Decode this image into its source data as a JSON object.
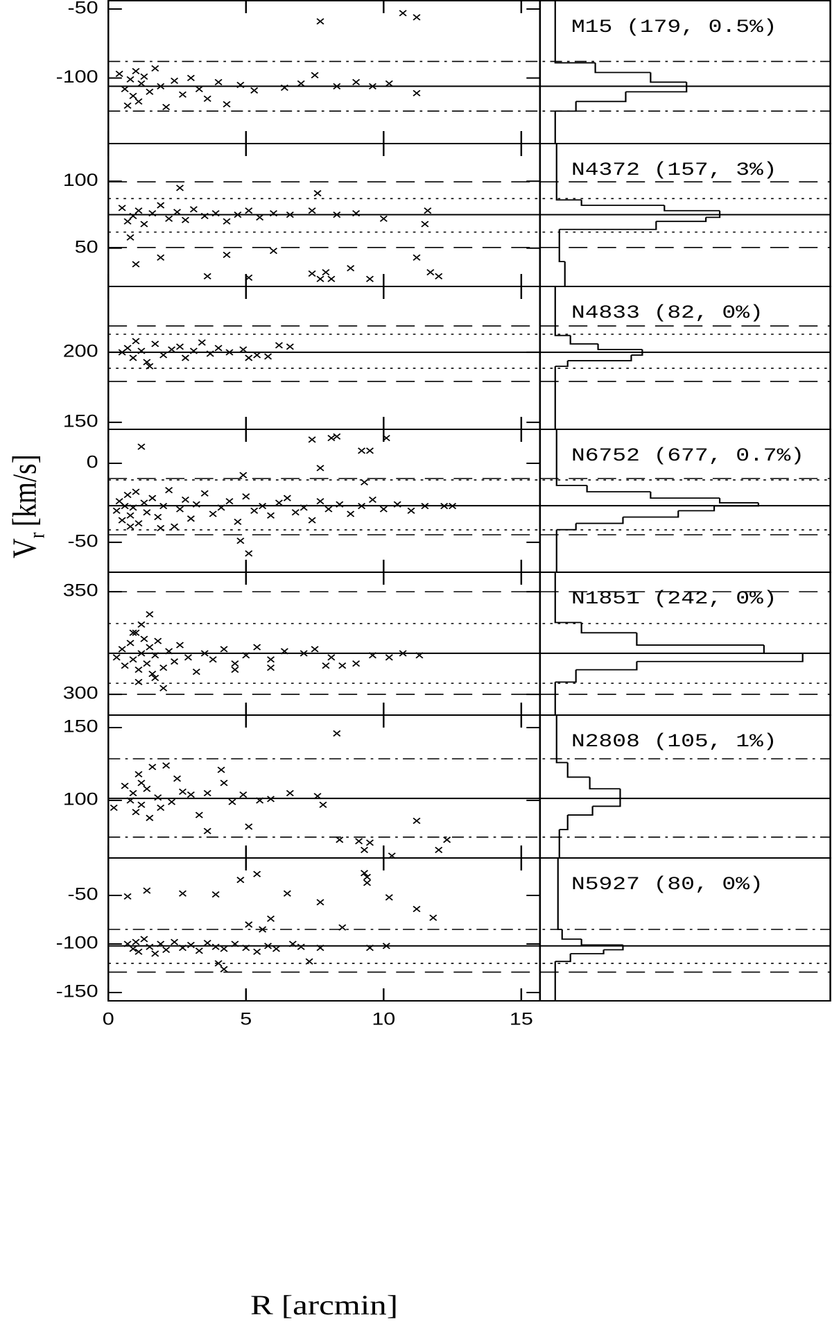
{
  "chart_data": [
    {
      "type": "scatter",
      "title": "M15 (179, 0.5%)",
      "ylim": [
        -147.5,
        -44
      ],
      "yticks": [
        -50,
        -100
      ],
      "lines": [
        {
          "value": -88,
          "style": "dash-dot"
        },
        {
          "value": -106,
          "style": "solid"
        },
        {
          "value": -124,
          "style": "dash-dot"
        }
      ],
      "x": [
        0.4,
        0.6,
        0.7,
        0.8,
        0.9,
        1.0,
        1.1,
        1.2,
        1.3,
        1.5,
        1.7,
        1.9,
        2.1,
        2.4,
        2.7,
        3.0,
        3.3,
        3.6,
        4.0,
        4.3,
        4.8,
        5.3,
        6.4,
        7.0,
        7.5,
        8.3,
        9.0,
        9.6,
        10.2,
        11.2,
        7.7,
        10.7,
        11.2
      ],
      "values": [
        -97,
        -108,
        -120,
        -101,
        -113,
        -95,
        -117,
        -104,
        -99,
        -110,
        -93,
        -106,
        -121,
        -102,
        -112,
        -100,
        -108,
        -115,
        -103,
        -119,
        -105,
        -109,
        -107,
        -104,
        -98,
        -106,
        -103,
        -106,
        -104,
        -111,
        -59,
        -53,
        -56
      ],
      "hist_xlim": [
        -5,
        100
      ],
      "hist": {
        "bins": [
          -147.5,
          -124,
          -117,
          -110,
          -103,
          -96,
          -89,
          -44
        ],
        "counts": [
          0.5,
          8,
          26,
          48,
          35,
          15,
          0.5
        ]
      }
    },
    {
      "type": "scatter",
      "title": "N4372 (157, 3%)",
      "ylim": [
        21.4,
        128.1
      ],
      "yticks": [
        100,
        50
      ],
      "lines": [
        {
          "value": 99.5,
          "style": "dashed"
        },
        {
          "value": 87,
          "style": "dotted"
        },
        {
          "value": 75,
          "style": "solid"
        },
        {
          "value": 62,
          "style": "dotted"
        },
        {
          "value": 50.5,
          "style": "dashed"
        }
      ],
      "x": [
        0.5,
        0.7,
        0.9,
        1.1,
        1.3,
        1.6,
        1.9,
        2.2,
        2.5,
        2.8,
        3.1,
        3.5,
        3.9,
        4.3,
        4.7,
        5.1,
        5.5,
        6.0,
        6.6,
        7.4,
        8.3,
        9.0,
        10.0,
        11.6,
        11.5,
        0.8,
        1.0,
        1.9,
        2.6,
        3.6,
        4.3,
        5.1,
        6.0,
        7.6,
        7.4,
        7.9,
        8.1,
        8.8,
        9.5,
        11.2,
        11.7,
        12.0,
        7.7
      ],
      "values": [
        80,
        70,
        74,
        78,
        68,
        76,
        82,
        72,
        77,
        71,
        79,
        74,
        76,
        70,
        75,
        78,
        73,
        76,
        75,
        78,
        75,
        76,
        72,
        78,
        68,
        58,
        38,
        43,
        95,
        29,
        45,
        28,
        48,
        91,
        31,
        32,
        27,
        35,
        27,
        43,
        32,
        29,
        27
      ],
      "hist_xlim": [
        -5,
        100
      ],
      "hist": {
        "bins": [
          21.4,
          40,
          64,
          70,
          73,
          78,
          82,
          86,
          128.1
        ],
        "counts": [
          4,
          2,
          37,
          55,
          60,
          40,
          10,
          1
        ]
      }
    },
    {
      "type": "scatter",
      "title": "N4833 (82, 0%)",
      "ylim": [
        145,
        247
      ],
      "yticks": [
        200,
        150
      ],
      "lines": [
        {
          "value": 218.8,
          "style": "dashed"
        },
        {
          "value": 212.9,
          "style": "dotted"
        },
        {
          "value": 200,
          "style": "solid"
        },
        {
          "value": 188.6,
          "style": "dotted"
        },
        {
          "value": 179.2,
          "style": "dashed"
        }
      ],
      "x": [
        0.5,
        0.7,
        0.9,
        1.0,
        1.2,
        1.4,
        1.5,
        1.7,
        2.0,
        2.3,
        2.6,
        2.8,
        3.1,
        3.4,
        3.7,
        4.0,
        4.4,
        4.9,
        5.1,
        5.4,
        5.8,
        6.2,
        6.6
      ],
      "values": [
        200,
        203,
        196,
        208,
        201,
        193,
        190,
        206,
        198,
        202,
        204,
        196,
        201,
        207,
        199,
        203,
        200,
        202,
        196,
        198,
        197,
        205,
        204
      ],
      "hist_xlim": [
        -5,
        100
      ],
      "hist": {
        "bins": [
          145,
          190,
          194,
          198,
          202,
          206,
          212,
          247
        ],
        "counts": [
          0.5,
          5,
          28,
          32,
          16,
          6,
          0.5
        ]
      }
    },
    {
      "type": "scatter",
      "title": "N6752 (677, 0.7%)",
      "ylim": [
        -68.9,
        21.5
      ],
      "yticks": [
        0,
        -50
      ],
      "ylabel": "V",
      "ylabel_sub": "r",
      "ylabel_unit": "[km/s]",
      "lines": [
        {
          "value": -9.6,
          "style": "dashed"
        },
        {
          "value": -10.5,
          "style": "dotted"
        },
        {
          "value": -26.8,
          "style": "solid"
        },
        {
          "value": -42.1,
          "style": "dotted"
        },
        {
          "value": -45.2,
          "style": "dashed"
        }
      ],
      "x": [
        0.3,
        0.4,
        0.5,
        0.6,
        0.7,
        0.8,
        0.9,
        1.0,
        1.1,
        1.3,
        1.4,
        1.6,
        1.8,
        2.0,
        2.2,
        2.4,
        2.6,
        2.8,
        3.0,
        3.2,
        3.5,
        3.8,
        4.1,
        4.4,
        4.7,
        5.0,
        5.3,
        5.6,
        5.9,
        6.2,
        6.5,
        6.8,
        7.1,
        7.4,
        7.7,
        8.0,
        8.4,
        8.8,
        9.2,
        9.6,
        10.0,
        10.5,
        11.0,
        11.5,
        12.2,
        12.5,
        1.2,
        4.9,
        7.7,
        7.4,
        8.1,
        8.3,
        9.2,
        9.5,
        10.1,
        9.3,
        4.8,
        5.1,
        0.8,
        1.9
      ],
      "values": [
        -30,
        -24,
        -36,
        -27,
        -20,
        -33,
        -28,
        -18,
        -38,
        -25,
        -31,
        -22,
        -34,
        -27,
        -17,
        -40,
        -29,
        -23,
        -35,
        -26,
        -19,
        -32,
        -28,
        -24,
        -37,
        -21,
        -30,
        -27,
        -33,
        -25,
        -22,
        -31,
        -28,
        -36,
        -24,
        -29,
        -26,
        -32,
        -27,
        -23,
        -29,
        -26,
        -30,
        -27,
        -27,
        -27,
        10.5,
        -7.5,
        -3,
        15,
        16,
        17,
        8,
        8,
        16,
        -12,
        -49,
        -57,
        -40,
        -41
      ],
      "hist_xlim": [
        -5,
        100
      ],
      "hist": {
        "bins": [
          -68.9,
          -42,
          -38,
          -34,
          -30,
          -27,
          -25,
          -22,
          -18,
          -14,
          21.5
        ],
        "counts": [
          1,
          8,
          25,
          45,
          58,
          74,
          60,
          35,
          12,
          1
        ]
      }
    },
    {
      "type": "scatter",
      "title": "N1851 (242, 0%)",
      "ylim": [
        289.9,
        359.5
      ],
      "yticks": [
        350,
        300
      ],
      "lines": [
        {
          "value": 350,
          "style": "dashed"
        },
        {
          "value": 334.5,
          "style": "dotted"
        },
        {
          "value": 320,
          "style": "solid"
        },
        {
          "value": 305.4,
          "style": "dotted"
        },
        {
          "value": 300,
          "style": "dashed"
        }
      ],
      "x": [
        0.3,
        0.5,
        0.6,
        0.8,
        0.9,
        1.0,
        1.1,
        1.2,
        1.3,
        1.4,
        1.5,
        1.6,
        1.7,
        1.8,
        2.0,
        2.2,
        2.4,
        2.6,
        2.9,
        3.2,
        3.5,
        3.8,
        4.2,
        4.6,
        5.0,
        5.4,
        5.9,
        6.4,
        7.1,
        7.5,
        8.1,
        8.5,
        9.0,
        9.6,
        10.2,
        10.7,
        11.3,
        1.5,
        1.2,
        1.1,
        0.9,
        2.0,
        1.7,
        7.9,
        4.6,
        5.9
      ],
      "values": [
        318,
        322,
        314,
        325,
        317,
        330,
        312,
        320,
        327,
        315,
        323,
        310,
        319,
        326,
        313,
        321,
        316,
        324,
        318,
        311,
        320,
        317,
        322,
        315,
        319,
        323,
        317,
        321,
        320,
        322,
        318,
        314,
        315,
        319,
        318,
        320,
        319,
        339,
        334,
        306,
        330,
        303,
        308,
        314,
        312,
        313
      ],
      "hist_xlim": [
        -5,
        100
      ],
      "hist": {
        "bins": [
          289.9,
          306,
          312,
          316,
          320,
          324,
          330,
          335,
          359.5
        ],
        "counts": [
          0.5,
          8,
          30,
          90,
          76,
          30,
          10,
          0.5
        ]
      }
    },
    {
      "type": "scatter",
      "title": "N2808 (105, 1%)",
      "ylim": [
        60.5,
        158.6
      ],
      "yticks": [
        150,
        100
      ],
      "lines": [
        {
          "value": 128.6,
          "style": "dash-dot"
        },
        {
          "value": 101.4,
          "style": "solid"
        },
        {
          "value": 74.8,
          "style": "dash-dot"
        }
      ],
      "x": [
        0.2,
        0.6,
        0.8,
        0.9,
        1.0,
        1.1,
        1.2,
        1.4,
        1.5,
        1.6,
        1.8,
        1.9,
        2.1,
        2.3,
        2.5,
        2.7,
        3.0,
        3.3,
        3.6,
        4.1,
        4.2,
        4.5,
        4.9,
        5.1,
        5.5,
        5.9,
        6.6,
        7.6,
        7.8,
        8.3,
        8.4,
        9.1,
        9.3,
        9.5,
        10.3,
        11.2,
        12.0,
        12.3,
        3.6,
        1.2
      ],
      "values": [
        95,
        110,
        100,
        105,
        92,
        118,
        97,
        108,
        88,
        123,
        102,
        95,
        124,
        99,
        115,
        106,
        104,
        90,
        105,
        121,
        112,
        99,
        104,
        82,
        100,
        101,
        105,
        103,
        97,
        146,
        73,
        72,
        66,
        71,
        62,
        86,
        66,
        73,
        79,
        112
      ],
      "hist_xlim": [
        -5,
        100
      ],
      "hist": {
        "bins": [
          60.5,
          80,
          90,
          96,
          108,
          116,
          126,
          158.6
        ],
        "counts": [
          2,
          5,
          14,
          24,
          13,
          5,
          1
        ]
      }
    },
    {
      "type": "scatter",
      "title": "N5927 (80, 0%)",
      "ylim": [
        -158.6,
        -11.4
      ],
      "yticks": [
        -50,
        -100,
        -150
      ],
      "xlim": [
        0,
        15.68
      ],
      "xticks": [
        0,
        5,
        10,
        15
      ],
      "xlabel": "R [arcmin]",
      "lines": [
        {
          "value": -85,
          "style": "dash-dot"
        },
        {
          "value": -102,
          "style": "solid"
        },
        {
          "value": -120,
          "style": "dotted"
        },
        {
          "value": -129,
          "style": "dashed"
        }
      ],
      "x": [
        0.7,
        0.9,
        1.0,
        1.1,
        1.3,
        1.5,
        1.7,
        1.9,
        2.1,
        2.4,
        2.7,
        3.0,
        3.3,
        3.6,
        3.9,
        4.2,
        4.6,
        5.0,
        5.4,
        5.8,
        6.1,
        6.7,
        7.0,
        7.3,
        7.7,
        0.7,
        1.4,
        2.7,
        3.9,
        4.0,
        4.8,
        5.4,
        5.9,
        6.5,
        7.7,
        8.5,
        9.3,
        9.4,
        10.2,
        11.2,
        11.8,
        5.1,
        5.6,
        9.5,
        4.2,
        9.4,
        10.1
      ],
      "values": [
        -100,
        -105,
        -98,
        -108,
        -95,
        -103,
        -110,
        -100,
        -106,
        -98,
        -104,
        -101,
        -107,
        -99,
        -103,
        -105,
        -100,
        -104,
        -108,
        -102,
        -105,
        -100,
        -103,
        -118,
        -104,
        -51,
        -45,
        -48,
        -49,
        -120,
        -34,
        -28,
        -74,
        -48,
        -57,
        -83,
        -27,
        -31,
        -52,
        -64,
        -73,
        -80,
        -85,
        -104,
        -126,
        -37,
        -102
      ],
      "hist_xlim": [
        -5,
        100
      ],
      "hist": {
        "bins": [
          -158.6,
          -118,
          -110,
          -106,
          -101,
          -95,
          -85,
          -11.4
        ],
        "counts": [
          0.5,
          6,
          18,
          25,
          10,
          3,
          1.5
        ]
      }
    }
  ]
}
